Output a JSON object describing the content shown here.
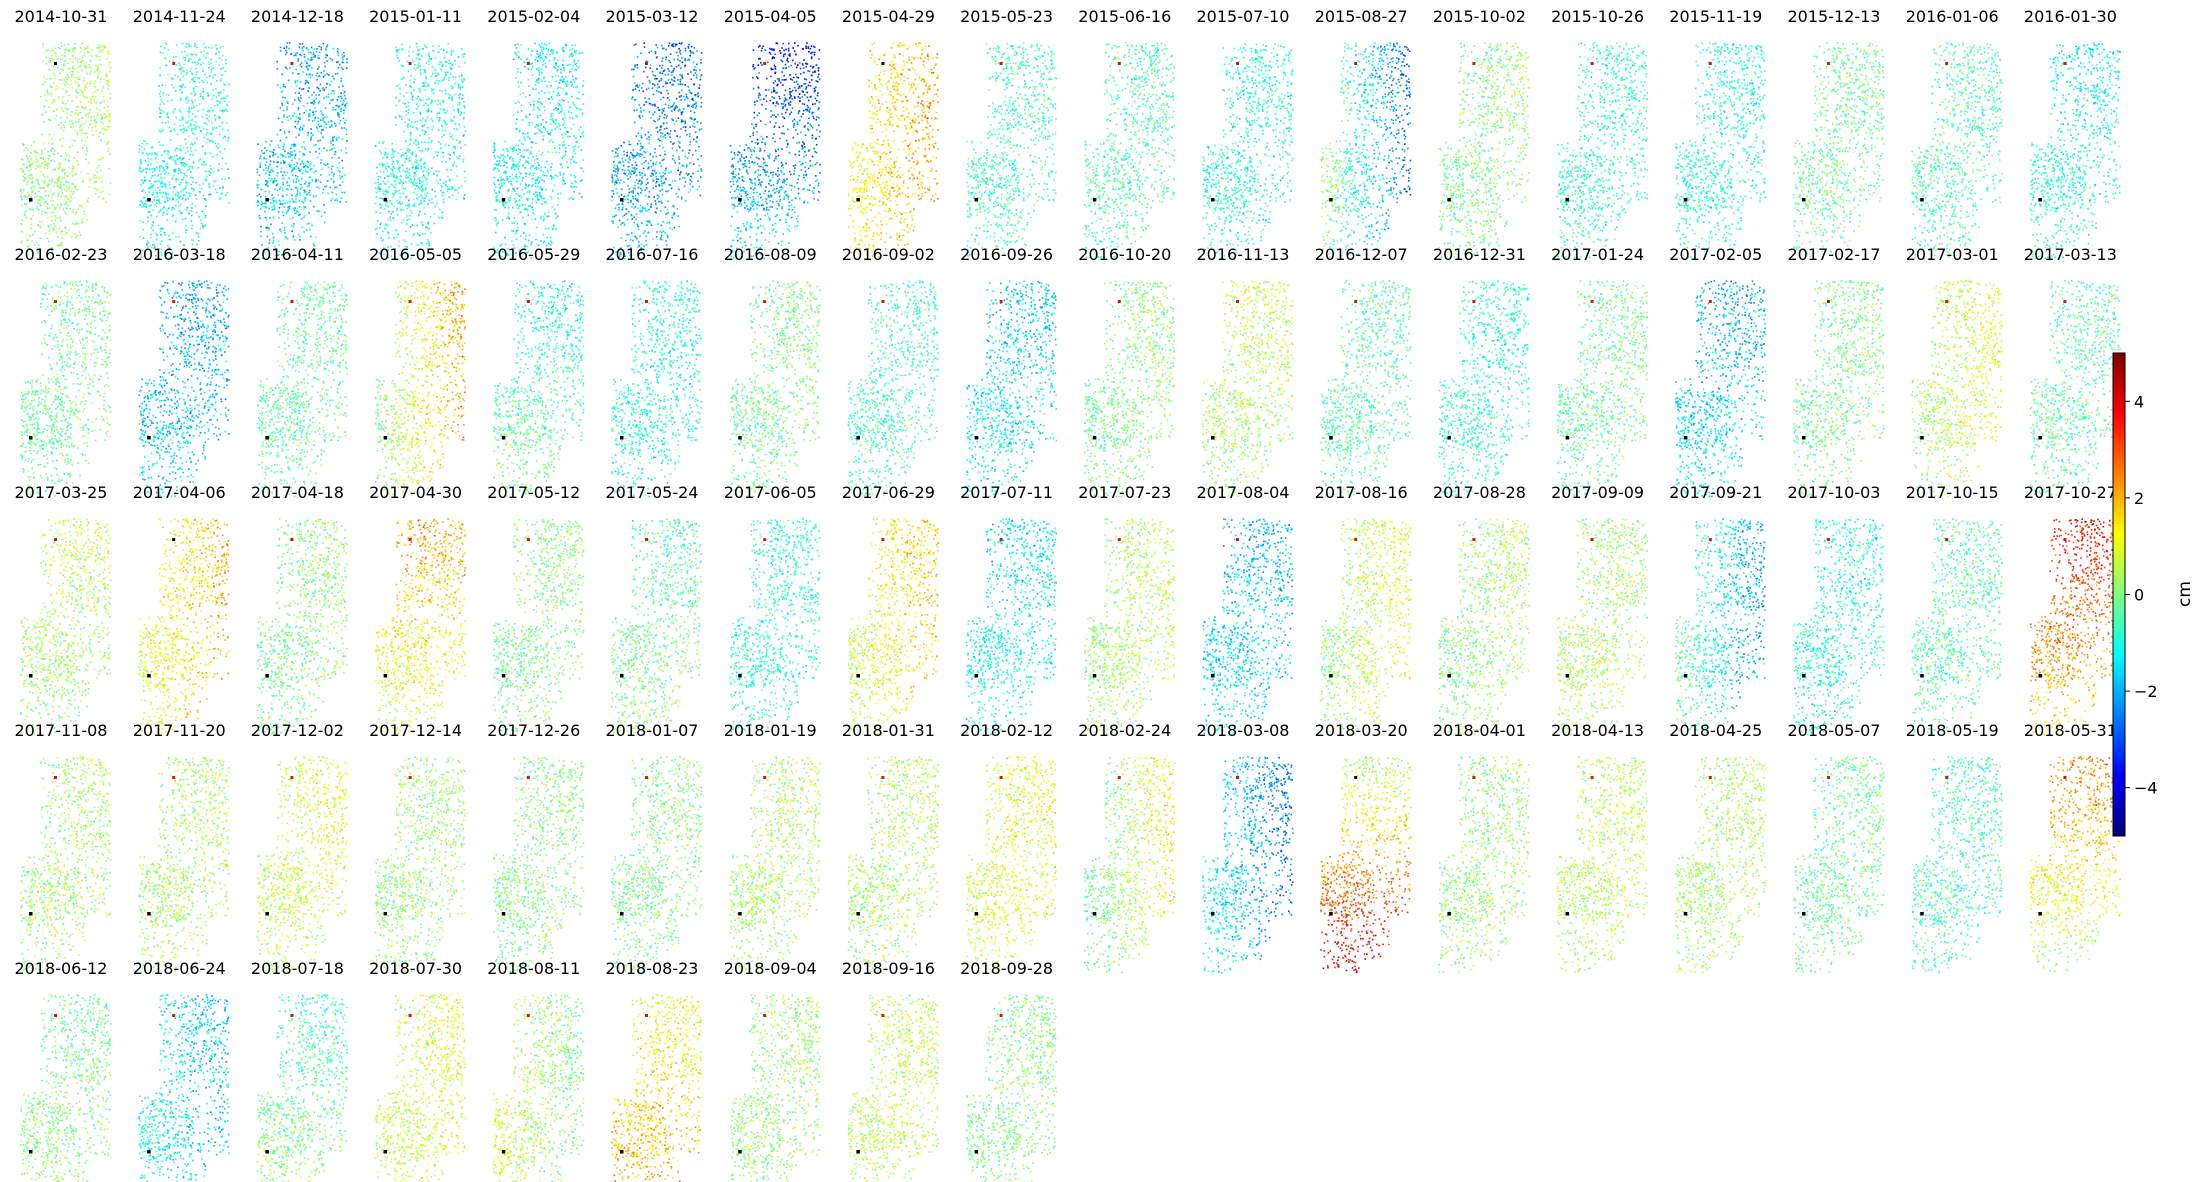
{
  "chart_data": {
    "type": "heatmap",
    "description_units": "cm",
    "colorbar": {
      "label": "cm",
      "colormap": "jet",
      "vmin": -5,
      "vmax": 5,
      "ticks": [
        -4,
        -2,
        0,
        2,
        4
      ],
      "tick_labels": [
        "−4",
        "−2",
        "0",
        "2",
        "4"
      ],
      "colors": [
        "#00007f",
        "#0000ff",
        "#007fff",
        "#00ffff",
        "#7fff7f",
        "#ffff00",
        "#ff7f00",
        "#ff0000",
        "#7f0000"
      ]
    },
    "panels": [
      {
        "date": "2014-10-31",
        "mean": 0.2,
        "g": 0.2,
        "grad": "x",
        "mark": "black"
      },
      {
        "date": "2014-11-24",
        "mean": -1.0,
        "g": 0.2,
        "grad": "y",
        "mark": "red"
      },
      {
        "date": "2014-12-18",
        "mean": -1.8,
        "g": -0.4,
        "grad": "y",
        "mark": "red"
      },
      {
        "date": "2015-01-11",
        "mean": -1.0,
        "g": 0.0,
        "grad": "x",
        "mark": "red"
      },
      {
        "date": "2015-02-04",
        "mean": -1.2,
        "g": 0.0,
        "grad": "y",
        "mark": "red"
      },
      {
        "date": "2015-03-12",
        "mean": -2.2,
        "g": -0.5,
        "grad": "y",
        "mark": "red"
      },
      {
        "date": "2015-04-05",
        "mean": -2.4,
        "g": -1.2,
        "grad": "y",
        "mark": "red"
      },
      {
        "date": "2015-04-29",
        "mean": 1.6,
        "g": 0.6,
        "grad": "x",
        "mark": "black"
      },
      {
        "date": "2015-05-23",
        "mean": -0.6,
        "g": 0.0,
        "grad": "y",
        "mark": "red"
      },
      {
        "date": "2015-06-16",
        "mean": -0.5,
        "g": 0.0,
        "grad": "x",
        "mark": "red"
      },
      {
        "date": "2015-07-10",
        "mean": -0.9,
        "g": 0.0,
        "grad": "y",
        "mark": "red"
      },
      {
        "date": "2015-08-27",
        "mean": -1.2,
        "g": -1.6,
        "grad": "x",
        "mark": "red"
      },
      {
        "date": "2015-10-02",
        "mean": 0.0,
        "g": 0.2,
        "grad": "x",
        "mark": "red"
      },
      {
        "date": "2015-10-26",
        "mean": -0.8,
        "g": 0.0,
        "grad": "x",
        "mark": "red"
      },
      {
        "date": "2015-11-19",
        "mean": -0.9,
        "g": 0.0,
        "grad": "y",
        "mark": "red"
      },
      {
        "date": "2015-12-13",
        "mean": -0.2,
        "g": 0.0,
        "grad": "x",
        "mark": "red"
      },
      {
        "date": "2016-01-06",
        "mean": -0.5,
        "g": 0.0,
        "grad": "x",
        "mark": "red"
      },
      {
        "date": "2016-01-30",
        "mean": -1.0,
        "g": -0.3,
        "grad": "y",
        "mark": "red"
      },
      {
        "date": "2016-02-23",
        "mean": -0.2,
        "g": 0.2,
        "grad": "x",
        "mark": "red"
      },
      {
        "date": "2016-03-18",
        "mean": -1.8,
        "g": -0.3,
        "grad": "y",
        "mark": "red"
      },
      {
        "date": "2016-04-11",
        "mean": -0.3,
        "g": 0.1,
        "grad": "x",
        "mark": "red"
      },
      {
        "date": "2016-05-05",
        "mean": 1.0,
        "g": 1.2,
        "grad": "x",
        "mark": "red"
      },
      {
        "date": "2016-05-29",
        "mean": -0.6,
        "g": -0.6,
        "grad": "y",
        "mark": "red"
      },
      {
        "date": "2016-07-16",
        "mean": -0.9,
        "g": 0.0,
        "grad": "y",
        "mark": "red"
      },
      {
        "date": "2016-08-09",
        "mean": -0.1,
        "g": 0.2,
        "grad": "x",
        "mark": "red"
      },
      {
        "date": "2016-09-02",
        "mean": -0.6,
        "g": 0.0,
        "grad": "x",
        "mark": "red"
      },
      {
        "date": "2016-09-26",
        "mean": -1.4,
        "g": -0.3,
        "grad": "y",
        "mark": "red"
      },
      {
        "date": "2016-10-20",
        "mean": 0.0,
        "g": 0.2,
        "grad": "x",
        "mark": "red"
      },
      {
        "date": "2016-11-13",
        "mean": 0.5,
        "g": 0.3,
        "grad": "y",
        "mark": "red"
      },
      {
        "date": "2016-12-07",
        "mean": -0.4,
        "g": 0.0,
        "grad": "x",
        "mark": "red"
      },
      {
        "date": "2016-12-31",
        "mean": -0.8,
        "g": 0.0,
        "grad": "y",
        "mark": "red"
      },
      {
        "date": "2017-01-24",
        "mean": -0.2,
        "g": 0.2,
        "grad": "x",
        "mark": "red"
      },
      {
        "date": "2017-02-05",
        "mean": -1.6,
        "g": -0.4,
        "grad": "y",
        "mark": "red"
      },
      {
        "date": "2017-02-17",
        "mean": -0.1,
        "g": 0.1,
        "grad": "x",
        "mark": "red"
      },
      {
        "date": "2017-03-01",
        "mean": 0.6,
        "g": 0.4,
        "grad": "x",
        "mark": "red"
      },
      {
        "date": "2017-03-13",
        "mean": -0.4,
        "g": 0.0,
        "grad": "x",
        "mark": "red"
      },
      {
        "date": "2017-03-25",
        "mean": 0.4,
        "g": 0.3,
        "grad": "y",
        "mark": "red"
      },
      {
        "date": "2017-04-06",
        "mean": 1.4,
        "g": 0.6,
        "grad": "x",
        "mark": "black"
      },
      {
        "date": "2017-04-18",
        "mean": 0.0,
        "g": 0.2,
        "grad": "x",
        "mark": "red"
      },
      {
        "date": "2017-04-30",
        "mean": 1.4,
        "g": 0.8,
        "grad": "y",
        "mark": "red"
      },
      {
        "date": "2017-05-12",
        "mean": 0.0,
        "g": 0.2,
        "grad": "x",
        "mark": "red"
      },
      {
        "date": "2017-05-24",
        "mean": -0.2,
        "g": -0.4,
        "grad": "y",
        "mark": "red"
      },
      {
        "date": "2017-06-05",
        "mean": -0.8,
        "g": 0.0,
        "grad": "x",
        "mark": "red"
      },
      {
        "date": "2017-06-29",
        "mean": 1.2,
        "g": 0.6,
        "grad": "x",
        "mark": "red"
      },
      {
        "date": "2017-07-11",
        "mean": -1.2,
        "g": -0.3,
        "grad": "y",
        "mark": "red"
      },
      {
        "date": "2017-07-23",
        "mean": 0.4,
        "g": 0.3,
        "grad": "x",
        "mark": "red"
      },
      {
        "date": "2017-08-04",
        "mean": -1.6,
        "g": -0.3,
        "grad": "y",
        "mark": "red"
      },
      {
        "date": "2017-08-16",
        "mean": 0.6,
        "g": 0.6,
        "grad": "x",
        "mark": "red"
      },
      {
        "date": "2017-08-28",
        "mean": 0.2,
        "g": 0.3,
        "grad": "x",
        "mark": "red"
      },
      {
        "date": "2017-09-09",
        "mean": 0.4,
        "g": -0.2,
        "grad": "y",
        "mark": "red"
      },
      {
        "date": "2017-09-21",
        "mean": -1.2,
        "g": -1.0,
        "grad": "x",
        "mark": "red"
      },
      {
        "date": "2017-10-03",
        "mean": -0.9,
        "g": 0.0,
        "grad": "x",
        "mark": "red"
      },
      {
        "date": "2017-10-15",
        "mean": -0.4,
        "g": 0.0,
        "grad": "x",
        "mark": "red"
      },
      {
        "date": "2017-10-27",
        "mean": 2.6,
        "g": 1.2,
        "grad": "y",
        "mark": "red"
      },
      {
        "date": "2017-11-08",
        "mean": 0.3,
        "g": 0.1,
        "grad": "x",
        "mark": "red"
      },
      {
        "date": "2017-11-20",
        "mean": 0.4,
        "g": 0.1,
        "grad": "x",
        "mark": "red"
      },
      {
        "date": "2017-12-02",
        "mean": 0.8,
        "g": 0.2,
        "grad": "x",
        "mark": "red"
      },
      {
        "date": "2017-12-14",
        "mean": 0.2,
        "g": 0.1,
        "grad": "x",
        "mark": "red"
      },
      {
        "date": "2017-12-26",
        "mean": 0.0,
        "g": 0.1,
        "grad": "x",
        "mark": "red"
      },
      {
        "date": "2018-01-07",
        "mean": 0.0,
        "g": 0.1,
        "grad": "x",
        "mark": "red"
      },
      {
        "date": "2018-01-19",
        "mean": 0.4,
        "g": 0.1,
        "grad": "x",
        "mark": "red"
      },
      {
        "date": "2018-01-31",
        "mean": 0.4,
        "g": 0.1,
        "grad": "x",
        "mark": "red"
      },
      {
        "date": "2018-02-12",
        "mean": 1.0,
        "g": 0.2,
        "grad": "x",
        "mark": "red"
      },
      {
        "date": "2018-02-24",
        "mean": 0.4,
        "g": 1.0,
        "grad": "x",
        "mark": "red"
      },
      {
        "date": "2018-03-08",
        "mean": -1.8,
        "g": -0.8,
        "grad": "x",
        "mark": "red"
      },
      {
        "date": "2018-03-20",
        "mean": 2.2,
        "g": -2.0,
        "grad": "y",
        "mark": "black"
      },
      {
        "date": "2018-04-01",
        "mean": 0.2,
        "g": 0.1,
        "grad": "x",
        "mark": "red"
      },
      {
        "date": "2018-04-13",
        "mean": 0.6,
        "g": 0.1,
        "grad": "x",
        "mark": "red"
      },
      {
        "date": "2018-04-25",
        "mean": 0.4,
        "g": 0.1,
        "grad": "x",
        "mark": "red"
      },
      {
        "date": "2018-05-07",
        "mean": -0.2,
        "g": 0.1,
        "grad": "x",
        "mark": "red"
      },
      {
        "date": "2018-05-19",
        "mean": -0.6,
        "g": 0.0,
        "grad": "x",
        "mark": "red"
      },
      {
        "date": "2018-05-31",
        "mean": 1.4,
        "g": 1.2,
        "grad": "y",
        "mark": "red"
      },
      {
        "date": "2018-06-12",
        "mean": 0.0,
        "g": -0.3,
        "grad": "y",
        "mark": "red"
      },
      {
        "date": "2018-06-24",
        "mean": -1.4,
        "g": -0.4,
        "grad": "x",
        "mark": "red"
      },
      {
        "date": "2018-07-18",
        "mean": -0.2,
        "g": -0.6,
        "grad": "y",
        "mark": "red"
      },
      {
        "date": "2018-07-30",
        "mean": 0.8,
        "g": 0.2,
        "grad": "x",
        "mark": "red"
      },
      {
        "date": "2018-08-11",
        "mean": 0.4,
        "g": -0.6,
        "grad": "x",
        "mark": "red"
      },
      {
        "date": "2018-08-23",
        "mean": 1.6,
        "g": -0.6,
        "grad": "y",
        "mark": "red"
      },
      {
        "date": "2018-09-04",
        "mean": 0.2,
        "g": 0.1,
        "grad": "x",
        "mark": "red"
      },
      {
        "date": "2018-09-16",
        "mean": 0.6,
        "g": 0.1,
        "grad": "x",
        "mark": "red"
      },
      {
        "date": "2018-09-28",
        "mean": 0.0,
        "g": 0.1,
        "grad": "x",
        "mark": "red"
      }
    ]
  }
}
